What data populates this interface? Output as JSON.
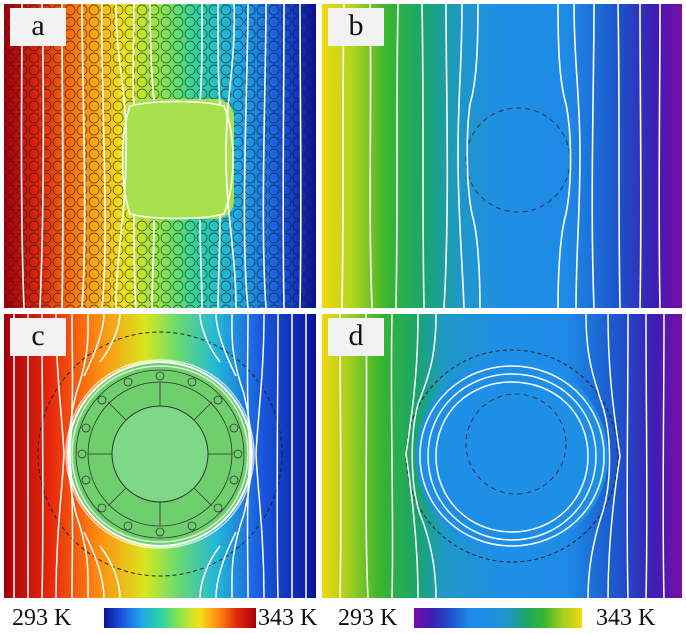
{
  "panels": [
    {
      "label": "a"
    },
    {
      "label": "b"
    },
    {
      "label": "c"
    },
    {
      "label": "d"
    }
  ],
  "colorbars": [
    {
      "min_label": "293 K",
      "max_label": "343 K",
      "colormap": "jet"
    },
    {
      "min_label": "293 K",
      "max_label": "343 K",
      "colormap": "spectral-reversed"
    }
  ],
  "colors": {
    "isotherm": "#ffffff",
    "outline": "#222222"
  }
}
